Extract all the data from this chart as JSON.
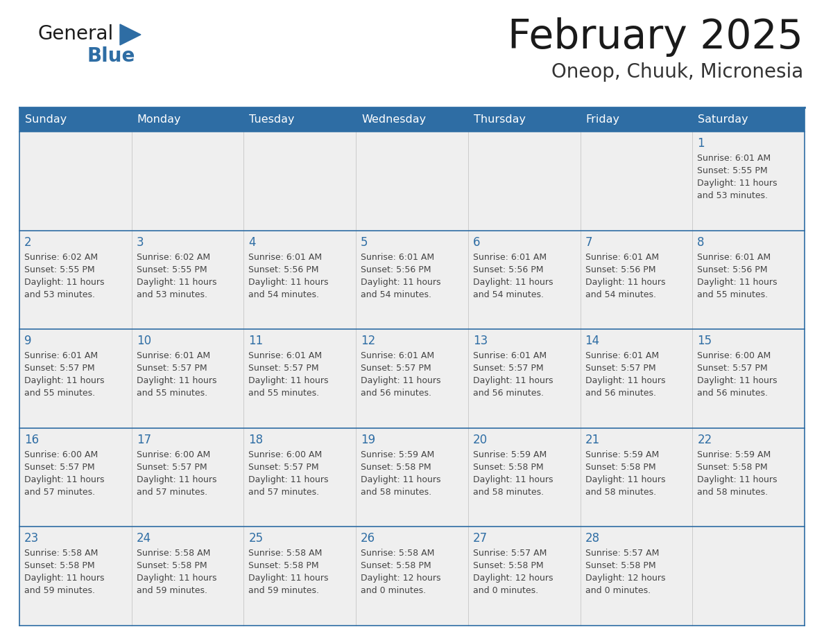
{
  "title": "February 2025",
  "subtitle": "Oneop, Chuuk, Micronesia",
  "days_of_week": [
    "Sunday",
    "Monday",
    "Tuesday",
    "Wednesday",
    "Thursday",
    "Friday",
    "Saturday"
  ],
  "header_bg": "#2E6DA4",
  "header_text_color": "#FFFFFF",
  "cell_bg": "#EFEFEF",
  "grid_line_color": "#2E6DA4",
  "day_number_color": "#2E6DA4",
  "info_text_color": "#444444",
  "title_color": "#1a1a1a",
  "subtitle_color": "#333333",
  "logo_general_color": "#1a1a1a",
  "logo_blue_color": "#2E6DA4",
  "calendar": [
    [
      null,
      null,
      null,
      null,
      null,
      null,
      {
        "day": 1,
        "sunrise": "6:01 AM",
        "sunset": "5:55 PM",
        "daylight": "11 hours",
        "daylight2": "and 53 minutes."
      }
    ],
    [
      {
        "day": 2,
        "sunrise": "6:02 AM",
        "sunset": "5:55 PM",
        "daylight": "11 hours",
        "daylight2": "and 53 minutes."
      },
      {
        "day": 3,
        "sunrise": "6:02 AM",
        "sunset": "5:55 PM",
        "daylight": "11 hours",
        "daylight2": "and 53 minutes."
      },
      {
        "day": 4,
        "sunrise": "6:01 AM",
        "sunset": "5:56 PM",
        "daylight": "11 hours",
        "daylight2": "and 54 minutes."
      },
      {
        "day": 5,
        "sunrise": "6:01 AM",
        "sunset": "5:56 PM",
        "daylight": "11 hours",
        "daylight2": "and 54 minutes."
      },
      {
        "day": 6,
        "sunrise": "6:01 AM",
        "sunset": "5:56 PM",
        "daylight": "11 hours",
        "daylight2": "and 54 minutes."
      },
      {
        "day": 7,
        "sunrise": "6:01 AM",
        "sunset": "5:56 PM",
        "daylight": "11 hours",
        "daylight2": "and 54 minutes."
      },
      {
        "day": 8,
        "sunrise": "6:01 AM",
        "sunset": "5:56 PM",
        "daylight": "11 hours",
        "daylight2": "and 55 minutes."
      }
    ],
    [
      {
        "day": 9,
        "sunrise": "6:01 AM",
        "sunset": "5:57 PM",
        "daylight": "11 hours",
        "daylight2": "and 55 minutes."
      },
      {
        "day": 10,
        "sunrise": "6:01 AM",
        "sunset": "5:57 PM",
        "daylight": "11 hours",
        "daylight2": "and 55 minutes."
      },
      {
        "day": 11,
        "sunrise": "6:01 AM",
        "sunset": "5:57 PM",
        "daylight": "11 hours",
        "daylight2": "and 55 minutes."
      },
      {
        "day": 12,
        "sunrise": "6:01 AM",
        "sunset": "5:57 PM",
        "daylight": "11 hours",
        "daylight2": "and 56 minutes."
      },
      {
        "day": 13,
        "sunrise": "6:01 AM",
        "sunset": "5:57 PM",
        "daylight": "11 hours",
        "daylight2": "and 56 minutes."
      },
      {
        "day": 14,
        "sunrise": "6:01 AM",
        "sunset": "5:57 PM",
        "daylight": "11 hours",
        "daylight2": "and 56 minutes."
      },
      {
        "day": 15,
        "sunrise": "6:00 AM",
        "sunset": "5:57 PM",
        "daylight": "11 hours",
        "daylight2": "and 56 minutes."
      }
    ],
    [
      {
        "day": 16,
        "sunrise": "6:00 AM",
        "sunset": "5:57 PM",
        "daylight": "11 hours",
        "daylight2": "and 57 minutes."
      },
      {
        "day": 17,
        "sunrise": "6:00 AM",
        "sunset": "5:57 PM",
        "daylight": "11 hours",
        "daylight2": "and 57 minutes."
      },
      {
        "day": 18,
        "sunrise": "6:00 AM",
        "sunset": "5:57 PM",
        "daylight": "11 hours",
        "daylight2": "and 57 minutes."
      },
      {
        "day": 19,
        "sunrise": "5:59 AM",
        "sunset": "5:58 PM",
        "daylight": "11 hours",
        "daylight2": "and 58 minutes."
      },
      {
        "day": 20,
        "sunrise": "5:59 AM",
        "sunset": "5:58 PM",
        "daylight": "11 hours",
        "daylight2": "and 58 minutes."
      },
      {
        "day": 21,
        "sunrise": "5:59 AM",
        "sunset": "5:58 PM",
        "daylight": "11 hours",
        "daylight2": "and 58 minutes."
      },
      {
        "day": 22,
        "sunrise": "5:59 AM",
        "sunset": "5:58 PM",
        "daylight": "11 hours",
        "daylight2": "and 58 minutes."
      }
    ],
    [
      {
        "day": 23,
        "sunrise": "5:58 AM",
        "sunset": "5:58 PM",
        "daylight": "11 hours",
        "daylight2": "and 59 minutes."
      },
      {
        "day": 24,
        "sunrise": "5:58 AM",
        "sunset": "5:58 PM",
        "daylight": "11 hours",
        "daylight2": "and 59 minutes."
      },
      {
        "day": 25,
        "sunrise": "5:58 AM",
        "sunset": "5:58 PM",
        "daylight": "11 hours",
        "daylight2": "and 59 minutes."
      },
      {
        "day": 26,
        "sunrise": "5:58 AM",
        "sunset": "5:58 PM",
        "daylight": "12 hours",
        "daylight2": "and 0 minutes."
      },
      {
        "day": 27,
        "sunrise": "5:57 AM",
        "sunset": "5:58 PM",
        "daylight": "12 hours",
        "daylight2": "and 0 minutes."
      },
      {
        "day": 28,
        "sunrise": "5:57 AM",
        "sunset": "5:58 PM",
        "daylight": "12 hours",
        "daylight2": "and 0 minutes."
      },
      null
    ]
  ]
}
